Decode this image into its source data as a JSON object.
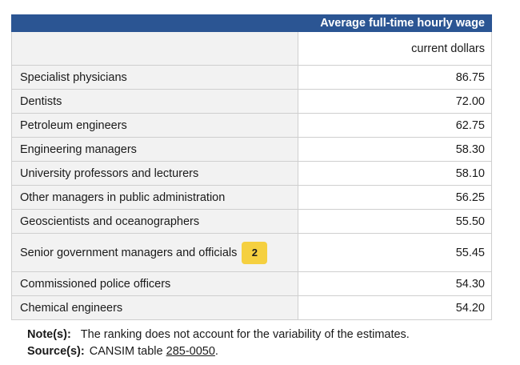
{
  "table": {
    "header_title": "Average full-time hourly wage",
    "unit_label": "current dollars",
    "rows": [
      {
        "occupation": "Specialist physicians",
        "wage": "86.75"
      },
      {
        "occupation": "Dentists",
        "wage": "72.00"
      },
      {
        "occupation": "Petroleum engineers",
        "wage": "62.75"
      },
      {
        "occupation": "Engineering managers",
        "wage": "58.30"
      },
      {
        "occupation": "University professors and lecturers",
        "wage": "58.10"
      },
      {
        "occupation": "Other managers in public administration",
        "wage": "56.25"
      },
      {
        "occupation": "Geoscientists and oceanographers",
        "wage": "55.50"
      },
      {
        "occupation": "Senior government managers and officials",
        "wage": "55.45",
        "footnote": "2"
      },
      {
        "occupation": "Commissioned police officers",
        "wage": "54.30"
      },
      {
        "occupation": "Chemical engineers",
        "wage": "54.20"
      }
    ]
  },
  "notes": {
    "note_label": "Note(s):",
    "note_text": "The ranking does not account for the variability of the estimates.",
    "source_label": "Source(s):",
    "source_prefix": "CANSIM table",
    "source_link": "285-0050",
    "source_suffix": "."
  },
  "colors": {
    "header_bg": "#2b5593",
    "row_bg": "#f2f2f2",
    "badge_bg": "#f5d040"
  }
}
